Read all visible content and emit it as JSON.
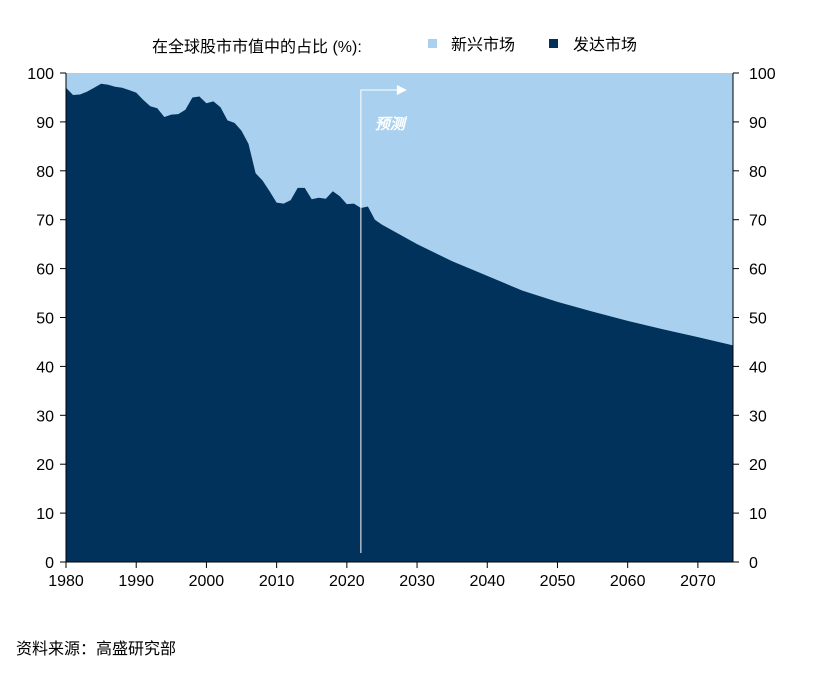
{
  "chart_data": {
    "type": "area",
    "title": "在全球股市市值中的占比 (%):",
    "xlabel": "",
    "ylabel": "",
    "xlim": [
      1980,
      2075
    ],
    "ylim": [
      0,
      100
    ],
    "x_ticks": [
      "1980",
      "1990",
      "2000",
      "2010",
      "2020",
      "2030",
      "2040",
      "2050",
      "2060",
      "2070"
    ],
    "y_ticks": [
      "0",
      "10",
      "20",
      "30",
      "40",
      "50",
      "60",
      "70",
      "80",
      "90",
      "100"
    ],
    "legend_position": "top",
    "series": [
      {
        "name": "新兴市场",
        "color": "#a9d0ee",
        "note": "remainder to 100"
      },
      {
        "name": "发达市场",
        "color": "#00325c"
      }
    ],
    "x": [
      1980,
      1981,
      1982,
      1983,
      1984,
      1985,
      1986,
      1987,
      1988,
      1989,
      1990,
      1991,
      1992,
      1993,
      1994,
      1995,
      1996,
      1997,
      1998,
      1999,
      2000,
      2001,
      2002,
      2003,
      2004,
      2005,
      2006,
      2007,
      2008,
      2009,
      2010,
      2011,
      2012,
      2013,
      2014,
      2015,
      2016,
      2017,
      2018,
      2019,
      2020,
      2021,
      2022,
      2023,
      2024,
      2025,
      2030,
      2035,
      2040,
      2045,
      2050,
      2055,
      2060,
      2065,
      2070,
      2075
    ],
    "developed": [
      97,
      95.5,
      95.6,
      96.2,
      97,
      97.8,
      97.6,
      97.2,
      97,
      96.5,
      96,
      94.5,
      93.2,
      92.8,
      91,
      91.5,
      91.6,
      92.5,
      95,
      95.2,
      93.8,
      94.2,
      93,
      90.3,
      89.8,
      88.2,
      85.5,
      79.5,
      78,
      75.8,
      73.5,
      73.3,
      74,
      76.5,
      76.5,
      74.2,
      74.5,
      74.3,
      75.8,
      74.8,
      73.2,
      73.3,
      72.4,
      72.7,
      70,
      69,
      65,
      61.5,
      58.5,
      55.5,
      53.2,
      51.2,
      49.3,
      47.6,
      46,
      44.3
    ],
    "annotation": {
      "text": "预测",
      "start_year": 2022
    }
  },
  "source": "资料来源：高盛研究部"
}
